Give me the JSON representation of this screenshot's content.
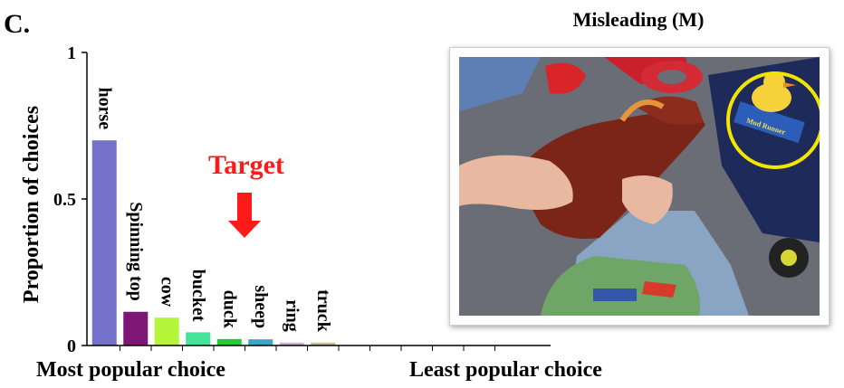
{
  "panel_letter": "C.",
  "photo_title": "Misleading (M)",
  "target_label": "Target",
  "photo_label": "Mud Runner",
  "colors": {
    "target": "#ff1a1a",
    "highlight_circle": "#f2e600",
    "axis": "#000000",
    "bars": [
      "#7372c8",
      "#7d1674",
      "#b5f53a",
      "#46e39a",
      "#27c83a",
      "#3fa3c6",
      "#c6b2d8",
      "#c9c08c"
    ]
  },
  "chart_data": {
    "type": "bar",
    "title": "",
    "ylabel": "Proportion of choices",
    "x_label_left": "Most popular choice",
    "x_label_right": "Least popular choice",
    "ylim": [
      0,
      1
    ],
    "yticks": [
      {
        "value": 0,
        "label": "0"
      },
      {
        "value": 0.5,
        "label": "0.5"
      },
      {
        "value": 1,
        "label": "1"
      }
    ],
    "categories": [
      "horse",
      "Spinning top",
      "cow",
      "bucket",
      "duck",
      "sheep",
      "ring",
      "truck"
    ],
    "values": [
      0.7,
      0.115,
      0.095,
      0.045,
      0.022,
      0.021,
      0.01,
      0.01
    ],
    "target_category": "duck",
    "total_slots": 14
  }
}
